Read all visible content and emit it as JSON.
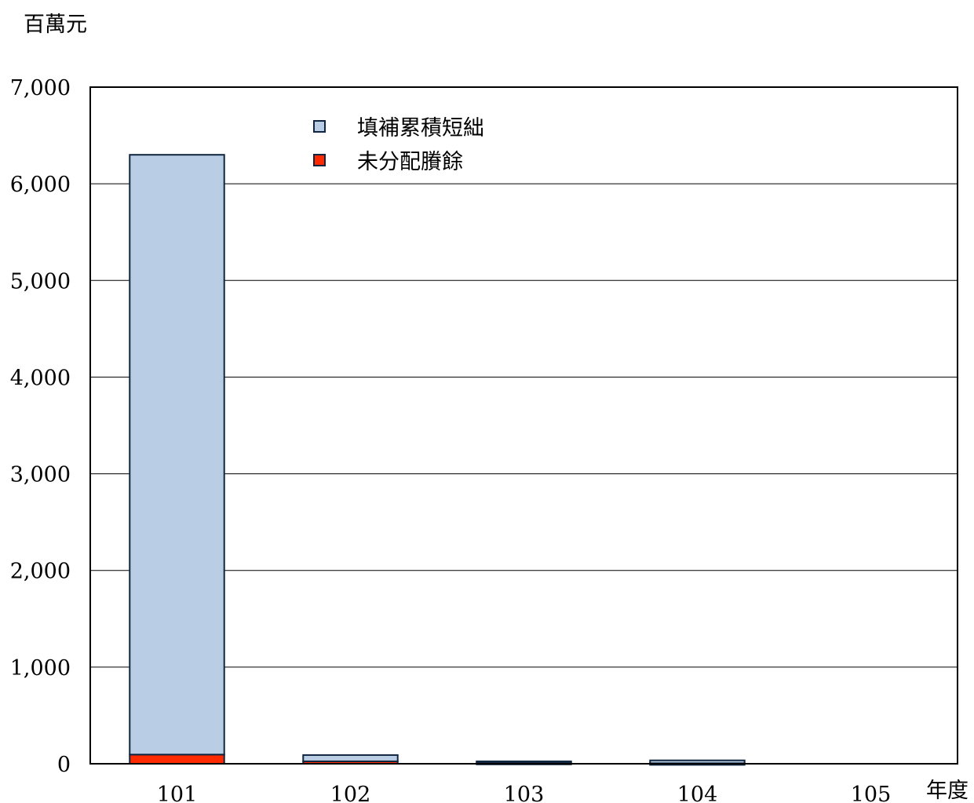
{
  "chart_data": {
    "type": "bar",
    "stacked": true,
    "title": "",
    "ylabel": "百萬元",
    "xlabel": "年度",
    "categories": [
      "101",
      "102",
      "103",
      "104",
      "105"
    ],
    "series": [
      {
        "name": "未分配賸餘",
        "values": [
          95,
          25,
          10,
          5,
          0
        ],
        "color": "#ff2a00"
      },
      {
        "name": "填補累積短絀",
        "values": [
          6205,
          65,
          15,
          30,
          0
        ],
        "color": "#b9cde4"
      }
    ],
    "ylim": [
      0,
      7000
    ],
    "yticks": [
      0,
      1000,
      2000,
      3000,
      4000,
      5000,
      6000,
      7000
    ],
    "ytick_labels": [
      "0",
      "1,000",
      "2,000",
      "3,000",
      "4,000",
      "5,000",
      "6,000",
      "7,000"
    ],
    "grid": true,
    "legend_position": "top-center",
    "legend_order": [
      "填補累積短絀",
      "未分配賸餘"
    ],
    "bar_edge_color": "#0f2540"
  }
}
